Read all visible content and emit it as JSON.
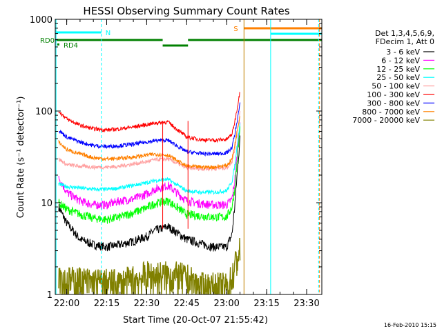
{
  "chart_data": {
    "type": "line",
    "title": "HESSI Observing Summary Count Rates",
    "xlabel": "Start Time (20-Oct-07 21:55:42)",
    "ylabel": "Count Rate (s⁻¹ detector⁻¹)",
    "y_scale": "log",
    "ylim": [
      1,
      1000
    ],
    "xlim": [
      "21:55:42",
      "23:35:42"
    ],
    "x_ticks": [
      "22:00",
      "22:15",
      "22:30",
      "22:45",
      "23:00",
      "23:15",
      "23:30"
    ],
    "y_ticks": [
      "1",
      "10",
      "100",
      "1000"
    ],
    "grid": false,
    "legend_position": "right",
    "legend_header": [
      "Det 1,3,4,5,6,9,",
      "FDecim 1, Att 0"
    ],
    "series": [
      {
        "name": "3 - 6 keV",
        "color": "#000000",
        "x": [
          "21:57",
          "22:00",
          "22:05",
          "22:10",
          "22:15",
          "22:20",
          "22:25",
          "22:30",
          "22:33",
          "22:38",
          "22:45",
          "22:50",
          "22:55",
          "23:00",
          "23:02",
          "23:03",
          "23:04",
          "23:05"
        ],
        "y": [
          9,
          6,
          4,
          3.5,
          3.3,
          3.5,
          3.8,
          4.3,
          5.0,
          5.5,
          4.0,
          3.6,
          3.3,
          3.3,
          4.5,
          9,
          22,
          50
        ]
      },
      {
        "name": "6 - 12 keV",
        "color": "#ff00ff",
        "x": [
          "21:57",
          "22:00",
          "22:05",
          "22:10",
          "22:15",
          "22:20",
          "22:25",
          "22:30",
          "22:33",
          "22:38",
          "22:45",
          "22:50",
          "22:55",
          "23:00",
          "23:02",
          "23:03",
          "23:04",
          "23:05"
        ],
        "y": [
          19,
          13,
          10.5,
          9.5,
          9.5,
          10.5,
          11,
          12.5,
          14,
          15.5,
          10.5,
          9.8,
          9.5,
          9.5,
          11,
          17,
          35,
          80
        ]
      },
      {
        "name": "12 - 25 keV",
        "color": "#00ff00",
        "x": [
          "21:57",
          "22:00",
          "22:05",
          "22:10",
          "22:15",
          "22:20",
          "22:25",
          "22:30",
          "22:33",
          "22:38",
          "22:45",
          "22:50",
          "22:55",
          "23:00",
          "23:02",
          "23:03",
          "23:04",
          "23:05"
        ],
        "y": [
          10,
          8.5,
          7.5,
          6.8,
          6.6,
          7.0,
          7.8,
          8.8,
          9.8,
          10.5,
          7.5,
          7.2,
          7.0,
          7.0,
          9,
          14,
          30,
          65
        ]
      },
      {
        "name": "25 - 50 keV",
        "color": "#00ffff",
        "x": [
          "21:57",
          "22:00",
          "22:05",
          "22:10",
          "22:15",
          "22:20",
          "22:25",
          "22:30",
          "22:33",
          "22:38",
          "22:45",
          "22:50",
          "22:55",
          "23:00",
          "23:02",
          "23:03",
          "23:04",
          "23:05"
        ],
        "y": [
          16,
          15,
          14.5,
          14,
          14,
          14.5,
          15.5,
          16.5,
          17.5,
          18,
          13.5,
          13,
          13,
          13.5,
          17,
          25,
          45,
          75
        ]
      },
      {
        "name": "50 - 100 keV",
        "color": "#ffa0a0",
        "x": [
          "21:57",
          "22:00",
          "22:05",
          "22:10",
          "22:15",
          "22:20",
          "22:25",
          "22:30",
          "22:33",
          "22:38",
          "22:45",
          "22:50",
          "22:55",
          "23:00",
          "23:02",
          "23:03",
          "23:04",
          "23:05"
        ],
        "y": [
          30,
          26,
          25,
          24.5,
          24.5,
          25,
          26.5,
          28,
          29.5,
          30,
          24,
          23.5,
          23.5,
          24,
          28,
          38,
          60,
          95
        ]
      },
      {
        "name": "100 - 300 keV",
        "color": "#ff0000",
        "x": [
          "21:57",
          "22:00",
          "22:05",
          "22:10",
          "22:15",
          "22:20",
          "22:25",
          "22:30",
          "22:33",
          "22:38",
          "22:45",
          "22:50",
          "22:55",
          "23:00",
          "23:02",
          "23:03",
          "23:04",
          "23:05"
        ],
        "y": [
          100,
          82,
          70,
          64,
          62,
          64,
          67,
          71,
          74,
          76,
          52,
          49,
          48,
          49,
          56,
          75,
          110,
          165
        ]
      },
      {
        "name": "300 - 800 keV",
        "color": "#0000ff",
        "x": [
          "21:57",
          "22:00",
          "22:05",
          "22:10",
          "22:15",
          "22:20",
          "22:25",
          "22:30",
          "22:33",
          "22:38",
          "22:45",
          "22:50",
          "22:55",
          "23:00",
          "23:02",
          "23:03",
          "23:04",
          "23:05"
        ],
        "y": [
          62,
          52,
          46,
          42,
          41,
          42,
          43.5,
          46,
          47.5,
          48,
          36,
          34.5,
          34,
          35,
          40,
          55,
          80,
          120
        ]
      },
      {
        "name": "800 - 7000 keV",
        "color": "#ff8000",
        "x": [
          "21:57",
          "22:00",
          "22:05",
          "22:10",
          "22:15",
          "22:20",
          "22:25",
          "22:30",
          "22:33",
          "22:38",
          "22:45",
          "22:50",
          "22:55",
          "23:00",
          "23:02",
          "23:03",
          "23:04",
          "23:05"
        ],
        "y": [
          46,
          38,
          34,
          31,
          30,
          30.5,
          31.5,
          33,
          34,
          33,
          25,
          24.5,
          24.5,
          25.5,
          30,
          42,
          62,
          90
        ]
      },
      {
        "name": "7000 - 20000 keV",
        "color": "#808000",
        "x": [
          "21:57",
          "21:59",
          "22:05",
          "22:10",
          "22:20",
          "22:30",
          "22:40",
          "22:45",
          "22:50",
          "22:55",
          "23:00",
          "23:02",
          "23:03",
          "23:04",
          "23:05"
        ],
        "y": [
          2.0,
          1.4,
          1.4,
          1.35,
          1.3,
          1.6,
          1.6,
          1.5,
          1.2,
          1.2,
          1.2,
          1.5,
          2.0,
          2.6,
          3.0
        ]
      }
    ],
    "flags": [
      {
        "label": "RD0",
        "color": "#008000",
        "segments": [
          [
            "21:55:42",
            "22:36:00"
          ],
          [
            "22:45:30",
            "23:35:42"
          ]
        ]
      },
      {
        "label": "",
        "color": "#008000",
        "segments": [
          [
            "22:36:00",
            "22:45:30"
          ]
        ],
        "level": "lower"
      },
      {
        "label": "RD4",
        "color": "#008000",
        "segments": [],
        "marker": "21:56:42"
      },
      {
        "label": "N",
        "color": "#00ffff",
        "segments": [
          [
            "21:56:00",
            "22:13:00"
          ]
        ]
      },
      {
        "label": "S",
        "color": "#ff8000",
        "segments": [
          [
            "23:06:30",
            "23:35:42"
          ]
        ]
      },
      {
        "label": "",
        "color": "#00ffff",
        "segments": [
          [
            "23:16:30",
            "23:35:42"
          ]
        ]
      }
    ],
    "vertical_lines": [
      {
        "t": "21:56:00",
        "color": "#00ffff",
        "dashed": false
      },
      {
        "t": "22:13:00",
        "color": "#00ffff",
        "dashed": true
      },
      {
        "t": "23:06:30",
        "color": "#c08000",
        "dashed": false
      },
      {
        "t": "23:16:30",
        "color": "#00ffff",
        "dashed": false
      },
      {
        "t": "23:34:30",
        "color": "#00ffff",
        "dashed": true
      },
      {
        "t": "23:34:50",
        "color": "#ff8000",
        "dashed": true
      }
    ],
    "steps": [
      {
        "t": "22:36:00",
        "color": "#ff0000"
      },
      {
        "t": "22:45:30",
        "color": "#ff0000"
      }
    ]
  },
  "timestamp": "16-Feb-2010 15:15"
}
